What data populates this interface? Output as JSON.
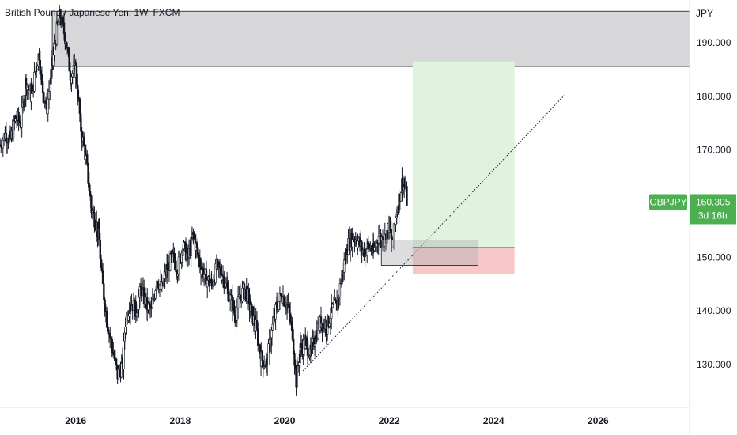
{
  "chart_data": {
    "type": "candlestick",
    "title": "British Pound / Japanese Yen, 1W, FXCM",
    "currency_label": "JPY",
    "symbol": "GBPJPY",
    "last_price": "160.305",
    "time_to_close": "3d 16h",
    "y_range": [
      122,
      198
    ],
    "x_range": [
      2014.55,
      2027.75
    ],
    "y_ticks": [
      "130.000",
      "140.000",
      "150.000",
      "160.000",
      "170.000",
      "180.000",
      "190.000"
    ],
    "y_tick_values": [
      130,
      140,
      150,
      160,
      170,
      180,
      190
    ],
    "x_ticks": [
      "2016",
      "2018",
      "2020",
      "2022",
      "2024",
      "2026"
    ],
    "x_tick_values": [
      2016,
      2018,
      2020,
      2022,
      2024,
      2026
    ],
    "last_price_value": 160.3,
    "resistance_zone": {
      "x_start": 2015.55,
      "x_end": 2027.75,
      "y_low": 185.6,
      "y_high": 195.9
    },
    "demand_zone": {
      "x_start": 2021.85,
      "x_end": 2023.7,
      "y_low": 148.5,
      "y_high": 153.2
    },
    "long_position": {
      "x_start": 2022.45,
      "x_end": 2024.4,
      "entry": 151.8,
      "target": 186.5,
      "stop": 146.9
    },
    "trendline": {
      "x1": 2020.35,
      "y1": 128.8,
      "x2": 2025.35,
      "y2": 180.2
    },
    "colors": {
      "up": "#131722",
      "down": "#131722",
      "zone_fill": "#d7d7da",
      "target_fill": "#dff3df",
      "stop_fill": "#f7c6c6",
      "price_tag": "#4caf50"
    },
    "price_path": [
      [
        2014.55,
        171
      ],
      [
        2014.65,
        173
      ],
      [
        2014.75,
        172
      ],
      [
        2014.85,
        176
      ],
      [
        2014.95,
        175
      ],
      [
        2015.05,
        183
      ],
      [
        2015.15,
        180
      ],
      [
        2015.25,
        186
      ],
      [
        2015.3,
        188
      ],
      [
        2015.35,
        182
      ],
      [
        2015.45,
        178
      ],
      [
        2015.55,
        186
      ],
      [
        2015.6,
        190
      ],
      [
        2015.65,
        193
      ],
      [
        2015.7,
        195
      ],
      [
        2015.8,
        191
      ],
      [
        2015.9,
        184
      ],
      [
        2016.0,
        185
      ],
      [
        2016.1,
        174
      ],
      [
        2016.2,
        168
      ],
      [
        2016.3,
        159
      ],
      [
        2016.4,
        156
      ],
      [
        2016.45,
        153
      ],
      [
        2016.5,
        146
      ],
      [
        2016.6,
        138
      ],
      [
        2016.7,
        133
      ],
      [
        2016.8,
        128
      ],
      [
        2016.9,
        130
      ],
      [
        2016.95,
        138
      ],
      [
        2017.05,
        142
      ],
      [
        2017.15,
        140
      ],
      [
        2017.25,
        144
      ],
      [
        2017.35,
        141
      ],
      [
        2017.45,
        140
      ],
      [
        2017.55,
        146
      ],
      [
        2017.65,
        144
      ],
      [
        2017.75,
        148
      ],
      [
        2017.85,
        150
      ],
      [
        2017.95,
        148
      ],
      [
        2018.05,
        152
      ],
      [
        2018.15,
        150
      ],
      [
        2018.25,
        154
      ],
      [
        2018.3,
        152
      ],
      [
        2018.4,
        148
      ],
      [
        2018.5,
        146
      ],
      [
        2018.6,
        145
      ],
      [
        2018.7,
        148
      ],
      [
        2018.8,
        147
      ],
      [
        2018.9,
        144
      ],
      [
        2019.0,
        141
      ],
      [
        2019.05,
        139
      ],
      [
        2019.15,
        143
      ],
      [
        2019.25,
        144
      ],
      [
        2019.35,
        140
      ],
      [
        2019.45,
        137
      ],
      [
        2019.55,
        131
      ],
      [
        2019.65,
        130
      ],
      [
        2019.75,
        136
      ],
      [
        2019.85,
        141
      ],
      [
        2019.95,
        143
      ],
      [
        2020.05,
        141
      ],
      [
        2020.15,
        136
      ],
      [
        2020.22,
        127
      ],
      [
        2020.3,
        133
      ],
      [
        2020.4,
        134
      ],
      [
        2020.5,
        132
      ],
      [
        2020.6,
        136
      ],
      [
        2020.7,
        138
      ],
      [
        2020.8,
        137
      ],
      [
        2020.9,
        140
      ],
      [
        2021.0,
        141
      ],
      [
        2021.1,
        147
      ],
      [
        2021.2,
        152
      ],
      [
        2021.3,
        154
      ],
      [
        2021.4,
        153
      ],
      [
        2021.5,
        151
      ],
      [
        2021.6,
        152
      ],
      [
        2021.7,
        151
      ],
      [
        2021.8,
        154
      ],
      [
        2021.9,
        153
      ],
      [
        2022.0,
        156
      ],
      [
        2022.05,
        152
      ],
      [
        2022.15,
        159
      ],
      [
        2022.25,
        164
      ],
      [
        2022.3,
        163
      ],
      [
        2022.35,
        160
      ]
    ]
  }
}
